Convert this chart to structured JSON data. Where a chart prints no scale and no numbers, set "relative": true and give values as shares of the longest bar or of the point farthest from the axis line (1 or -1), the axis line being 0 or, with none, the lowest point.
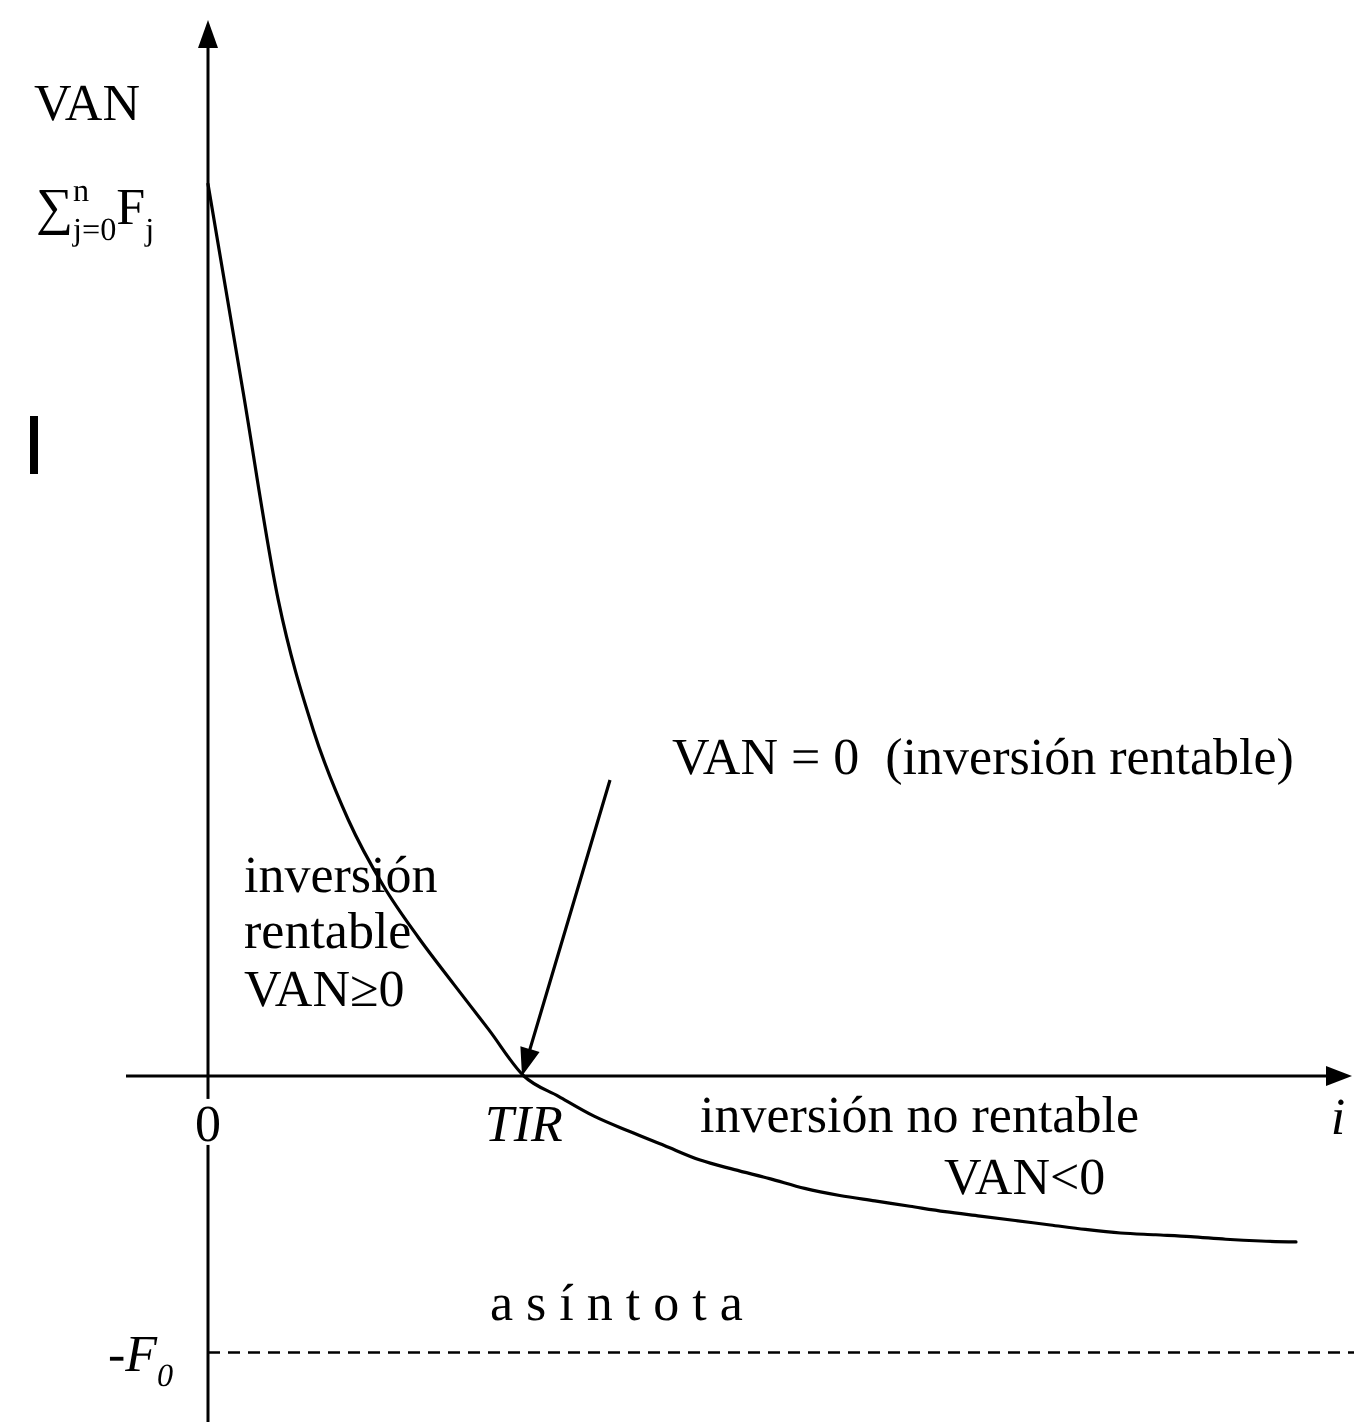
{
  "chart_data": {
    "type": "line",
    "relative": true,
    "ylabel": "VAN",
    "xlabel": "i",
    "categories": [
      "0",
      null,
      null,
      null,
      null,
      null,
      null,
      null,
      null,
      "TIR",
      null,
      null,
      null,
      null,
      null,
      null,
      null,
      null,
      null,
      null,
      null,
      null,
      null,
      null,
      null,
      null,
      null,
      null,
      null,
      null,
      null,
      null
    ],
    "values": [
      1,
      0.767,
      0.534,
      0.388,
      0.287,
      0.213,
      0.155,
      0.103,
      0.052,
      0,
      -0.023,
      -0.045,
      -0.062,
      -0.078,
      -0.094,
      -0.105,
      -0.115,
      -0.126,
      -0.134,
      -0.14,
      -0.146,
      -0.152,
      -0.157,
      -0.162,
      -0.167,
      -0.172,
      -0.176,
      -0.178,
      -0.18,
      -0.183,
      -0.185,
      -0.186
    ],
    "color": "#000000",
    "ref_lines": [
      {
        "axis": "y",
        "value": -0.31,
        "label": "-F$_{0}$",
        "line_style": "dashed",
        "color": "#000000"
      }
    ],
    "annotations": [
      "VAN = 0  (inversión rentable)",
      {
        "text": "∑$^{n}$$_{j=0}$F$_{j}$",
        "x": "0",
        "y": 1
      },
      "inversión\nrentable\nVAN≥0",
      "inversión no rentable\nVAN<0",
      "a s í n t o t a"
    ]
  }
}
